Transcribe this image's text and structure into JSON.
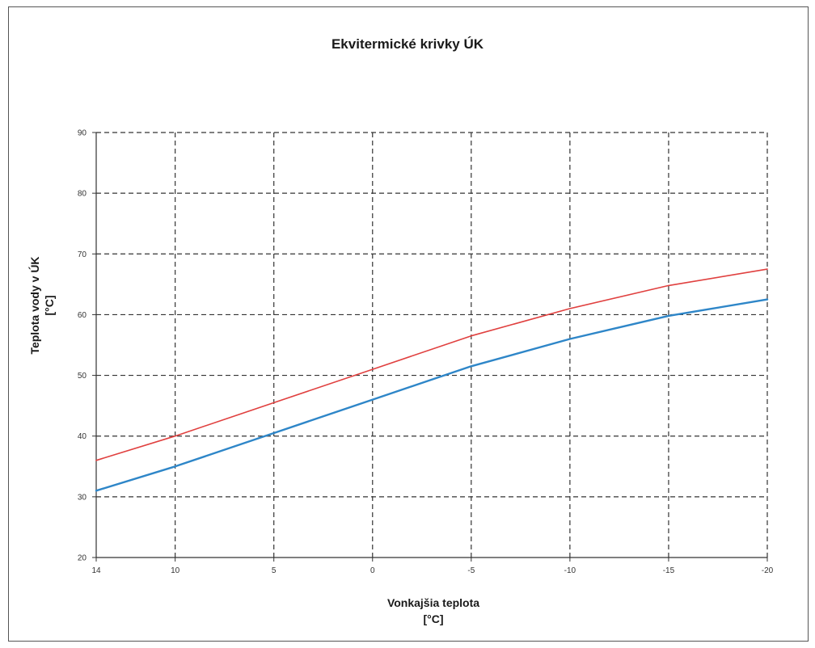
{
  "chart_data": {
    "type": "line",
    "title": "Ekvitermické krivky ÚK",
    "xlabel_line1": "Vonkajšia  teplota",
    "xlabel_line2": "[°C]",
    "ylabel_line1": "Teplota vody v ÚK",
    "ylabel_line2": "[°C]",
    "x_ticks": [
      14,
      10,
      5,
      0,
      -5,
      -10,
      -15,
      -20
    ],
    "y_ticks": [
      20,
      30,
      40,
      50,
      60,
      70,
      80,
      90
    ],
    "xlim": [
      14,
      -20
    ],
    "ylim": [
      20,
      90
    ],
    "x_reversed": true,
    "grid": true,
    "grid_style": "dashed",
    "series": [
      {
        "color": "#e0403f",
        "x": [
          14,
          10,
          5,
          0,
          -5,
          -10,
          -15,
          -20
        ],
        "values": [
          36,
          40,
          45.5,
          51,
          56.5,
          61,
          64.8,
          67.5
        ]
      },
      {
        "color": "#2e86c8",
        "x": [
          14,
          10,
          5,
          0,
          -5,
          -10,
          -15,
          -20
        ],
        "values": [
          31,
          35,
          40.5,
          46,
          51.5,
          56,
          59.8,
          62.5
        ]
      }
    ]
  }
}
